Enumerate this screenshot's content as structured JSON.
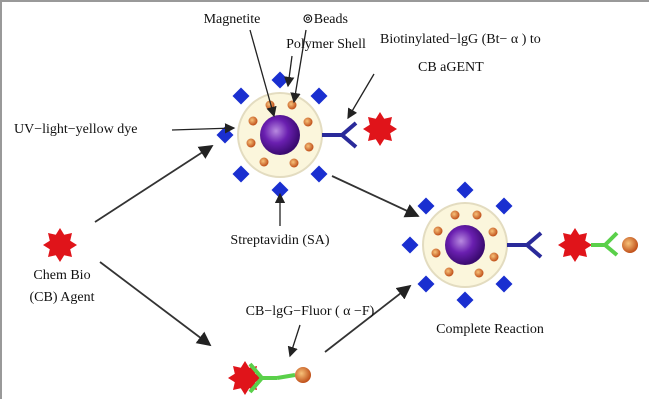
{
  "labels": {
    "magnetite": "Magnetite",
    "beads": "⊚Beads",
    "polymer_shell": "Polymer Shell",
    "biotinylated_line1": "Biotinylated−lgG (Bt− α ) to",
    "biotinylated_line2": "CB aGENT",
    "uv_dye": "UV−light−yellow dye",
    "streptavidin": "Streptavidin (SA)",
    "chem_bio_line1": "Chem Bio",
    "chem_bio_line2": "(CB) Agent",
    "fluor": "CB−lgG−Fluor ( α −F)",
    "complete": "Complete Reaction"
  }
}
